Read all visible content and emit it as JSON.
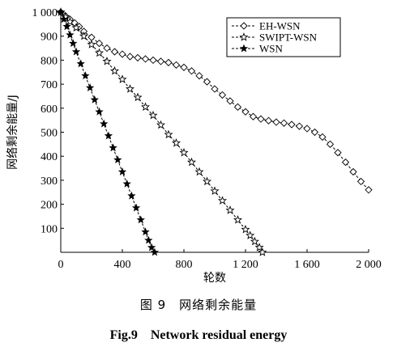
{
  "chart_data": {
    "type": "line",
    "xlabel": "轮数",
    "ylabel": "网络剩余能量/J",
    "xlim": [
      0,
      2000
    ],
    "ylim": [
      0,
      1000
    ],
    "xticks": [
      0,
      400,
      800,
      1200,
      1600,
      2000
    ],
    "xtick_labels": [
      "0",
      "400",
      "800",
      "1 200",
      "1 600",
      "2 000"
    ],
    "yticks": [
      100,
      200,
      300,
      400,
      500,
      600,
      700,
      800,
      900,
      1000
    ],
    "ytick_labels": [
      "100",
      "200",
      "300",
      "400",
      "500",
      "600",
      "700",
      "800",
      "900",
      "1 000"
    ],
    "grid": false,
    "legend_position": "top-right",
    "series": [
      {
        "name": "EH-WSN",
        "marker": "diamond",
        "x": [
          0,
          30,
          60,
          90,
          120,
          150,
          200,
          250,
          300,
          350,
          400,
          450,
          500,
          550,
          600,
          650,
          700,
          750,
          800,
          850,
          900,
          950,
          1000,
          1050,
          1100,
          1150,
          1200,
          1250,
          1300,
          1350,
          1400,
          1450,
          1500,
          1550,
          1600,
          1650,
          1700,
          1750,
          1800,
          1850,
          1900,
          1950,
          2000
        ],
        "values": [
          1000,
          985,
          970,
          955,
          940,
          920,
          895,
          870,
          850,
          835,
          825,
          815,
          810,
          805,
          800,
          795,
          790,
          780,
          770,
          755,
          735,
          710,
          680,
          655,
          630,
          605,
          585,
          565,
          555,
          548,
          542,
          538,
          532,
          525,
          515,
          500,
          480,
          450,
          415,
          375,
          335,
          295,
          260
        ]
      },
      {
        "name": "SWIPT-WSN",
        "marker": "star-hollow",
        "x": [
          0,
          30,
          60,
          100,
          150,
          200,
          250,
          300,
          350,
          400,
          450,
          500,
          550,
          600,
          650,
          700,
          750,
          800,
          850,
          900,
          950,
          1000,
          1050,
          1100,
          1150,
          1200,
          1230,
          1260,
          1290,
          1310
        ],
        "values": [
          1000,
          980,
          960,
          935,
          900,
          865,
          830,
          795,
          755,
          720,
          680,
          645,
          605,
          570,
          530,
          490,
          455,
          415,
          375,
          335,
          295,
          255,
          215,
          175,
          135,
          95,
          70,
          45,
          20,
          0
        ]
      },
      {
        "name": "WSN",
        "marker": "star-filled",
        "x": [
          0,
          20,
          40,
          60,
          80,
          100,
          130,
          160,
          190,
          220,
          250,
          280,
          310,
          340,
          370,
          400,
          430,
          460,
          490,
          520,
          550,
          570,
          590,
          610
        ],
        "values": [
          1000,
          970,
          940,
          905,
          870,
          835,
          785,
          735,
          685,
          635,
          585,
          535,
          485,
          435,
          385,
          335,
          285,
          235,
          185,
          135,
          85,
          50,
          20,
          0
        ]
      }
    ]
  },
  "caption": {
    "cn": "图 9　网络剩余能量",
    "en": "Fig.9　Network residual energy"
  }
}
